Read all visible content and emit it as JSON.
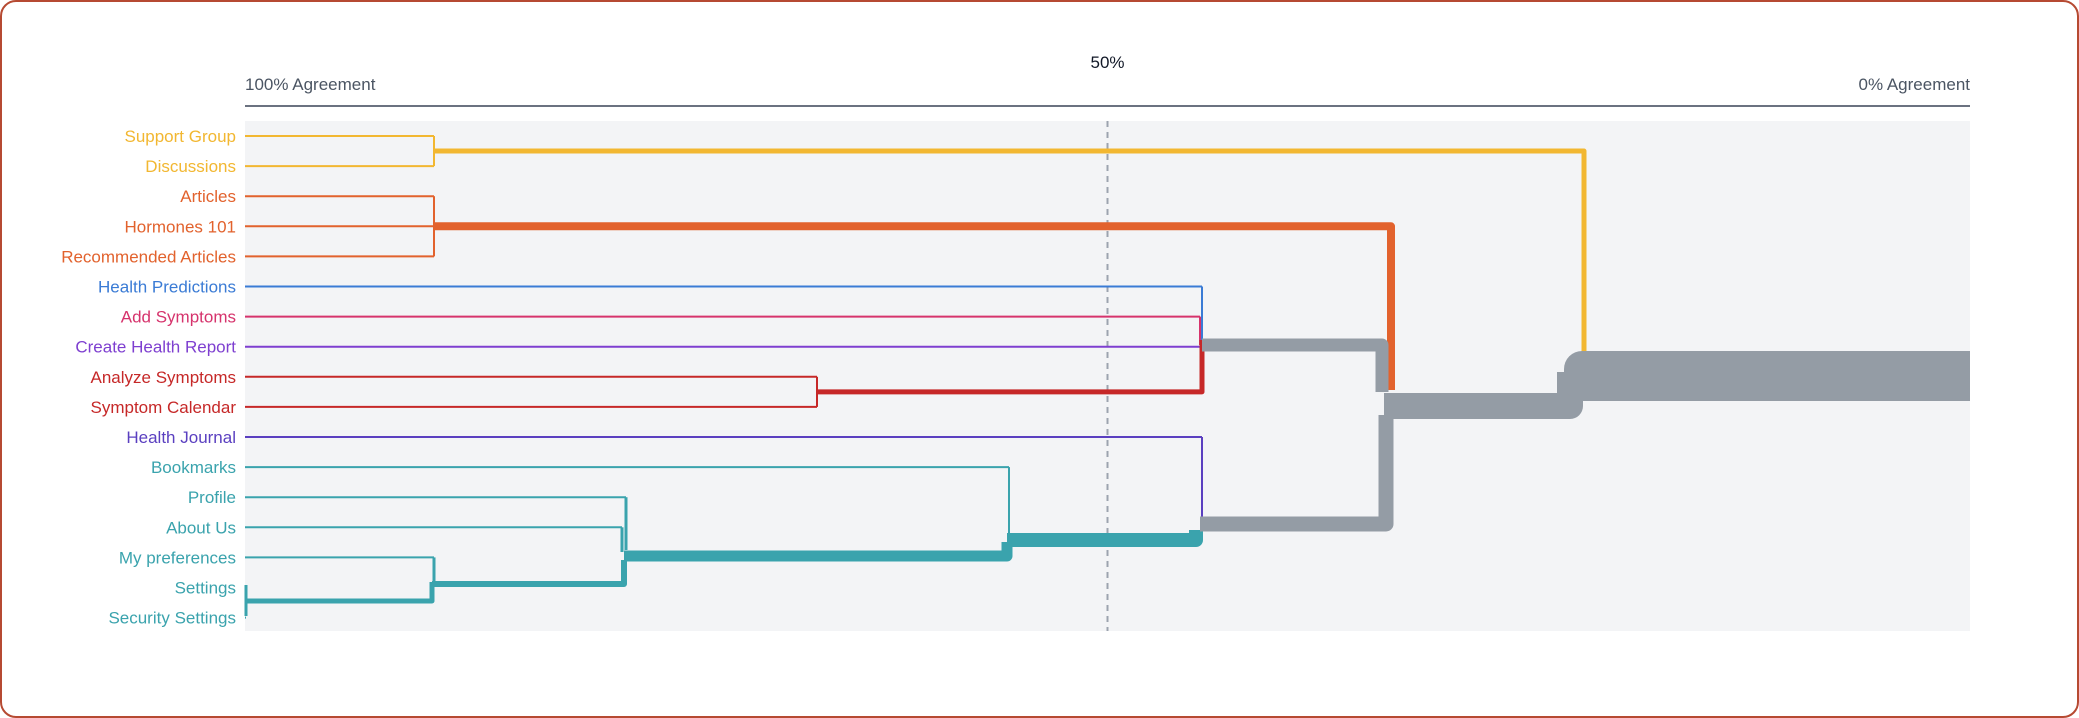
{
  "scale": {
    "left_label": "100% Agreement",
    "right_label": "0% Agreement",
    "midline_label": "50%",
    "midline_percent": 50
  },
  "colors": {
    "plot_bg": "#f3f4f6",
    "axis": "#6b7280",
    "midline": "#9ca3af",
    "merged": "#949ca5"
  },
  "items": [
    {
      "label": "Support Group",
      "group": "community",
      "color": "#f2b731"
    },
    {
      "label": "Discussions",
      "group": "community",
      "color": "#f2b731"
    },
    {
      "label": "Articles",
      "group": "learn",
      "color": "#e2622d"
    },
    {
      "label": "Hormones 101",
      "group": "learn",
      "color": "#e2622d"
    },
    {
      "label": "Recommended Articles",
      "group": "learn",
      "color": "#e2622d"
    },
    {
      "label": "Health Predictions",
      "group": "predictions",
      "color": "#3a7bd5"
    },
    {
      "label": "Add Symptoms",
      "group": "add-symptoms",
      "color": "#d6336c"
    },
    {
      "label": "Create Health Report",
      "group": "report",
      "color": "#7e3fd0"
    },
    {
      "label": "Analyze Symptoms",
      "group": "symptoms",
      "color": "#c62828"
    },
    {
      "label": "Symptom Calendar",
      "group": "symptoms",
      "color": "#c62828"
    },
    {
      "label": "Health Journal",
      "group": "journal",
      "color": "#5a3fc0"
    },
    {
      "label": "Bookmarks",
      "group": "account",
      "color": "#3aa3ad"
    },
    {
      "label": "Profile",
      "group": "account",
      "color": "#3aa3ad"
    },
    {
      "label": "About Us",
      "group": "account",
      "color": "#3aa3ad"
    },
    {
      "label": "My preferences",
      "group": "account",
      "color": "#3aa3ad"
    },
    {
      "label": "Settings",
      "group": "account",
      "color": "#3aa3ad"
    },
    {
      "label": "Security Settings",
      "group": "account",
      "color": "#3aa3ad"
    }
  ]
}
